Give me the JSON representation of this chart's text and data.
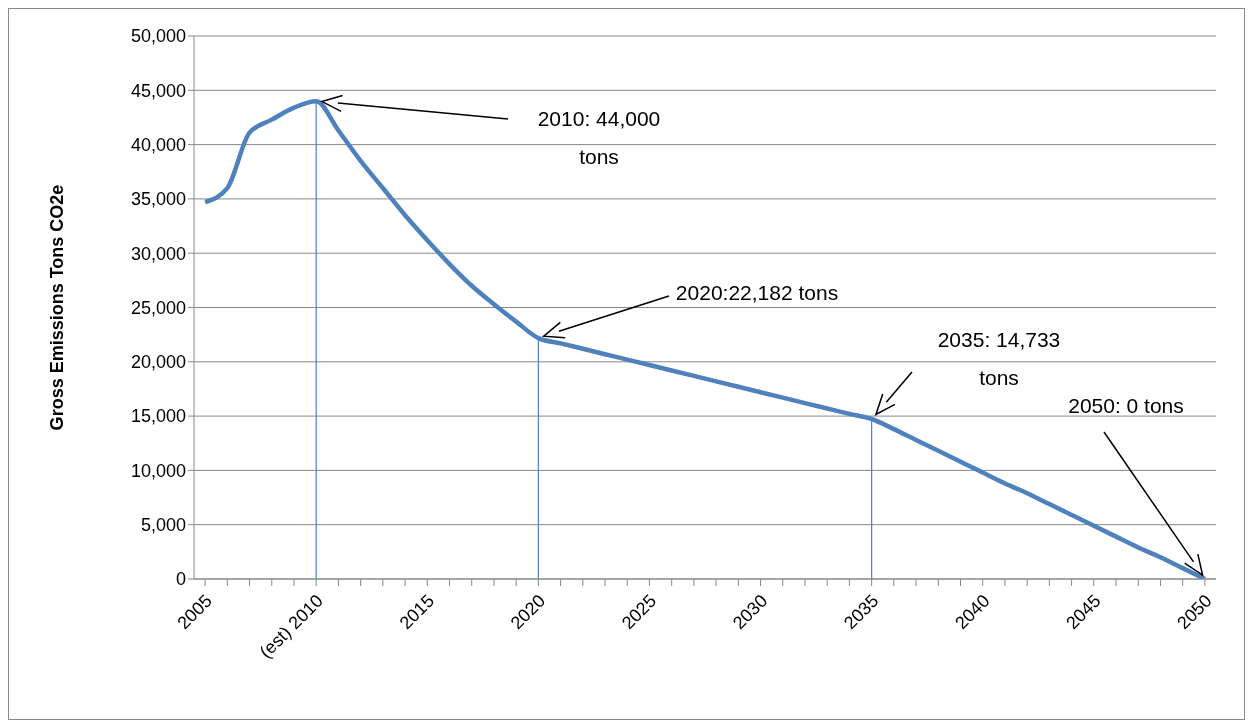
{
  "chart_data": {
    "type": "line",
    "ylabel": "Gross Emissions Tons CO2e",
    "x": [
      2005,
      2006,
      2007,
      2008,
      2009,
      2010,
      2011,
      2012,
      2013,
      2014,
      2015,
      2016,
      2017,
      2018,
      2019,
      2020,
      2021,
      2022,
      2023,
      2024,
      2025,
      2026,
      2027,
      2028,
      2029,
      2030,
      2031,
      2032,
      2033,
      2034,
      2035,
      2036,
      2037,
      2038,
      2039,
      2040,
      2041,
      2042,
      2043,
      2044,
      2045,
      2046,
      2047,
      2048,
      2049,
      2050
    ],
    "series": [
      {
        "color": "#4f81bd",
        "values": [
          34700,
          36000,
          41100,
          42300,
          43400,
          44000,
          41300,
          38500,
          36000,
          33500,
          31200,
          29000,
          27000,
          25300,
          23700,
          22182,
          21700,
          21200,
          20700,
          20200,
          19700,
          19200,
          18700,
          18200,
          17700,
          17200,
          16700,
          16200,
          15700,
          15200,
          14733,
          13800,
          12800,
          11800,
          10800,
          9800,
          8800,
          7900,
          6900,
          5900,
          4900,
          3900,
          2900,
          2000,
          1000,
          0
        ]
      }
    ],
    "xlim": [
      2004.5,
      2050.5
    ],
    "xticks": [
      2005,
      {
        "value": 2006,
        "label": null
      },
      {
        "value": 2007,
        "label": null
      },
      {
        "value": 2008,
        "label": null
      },
      {
        "value": 2009,
        "label": null
      },
      {
        "value": 2010,
        "label": "(est) 2010"
      },
      {
        "value": 2011,
        "label": null
      },
      {
        "value": 2012,
        "label": null
      },
      {
        "value": 2013,
        "label": null
      },
      {
        "value": 2014,
        "label": null
      },
      2015,
      {
        "value": 2016,
        "label": null
      },
      {
        "value": 2017,
        "label": null
      },
      {
        "value": 2018,
        "label": null
      },
      {
        "value": 2019,
        "label": null
      },
      2020,
      {
        "value": 2021,
        "label": null
      },
      {
        "value": 2022,
        "label": null
      },
      {
        "value": 2023,
        "label": null
      },
      {
        "value": 2024,
        "label": null
      },
      2025,
      {
        "value": 2026,
        "label": null
      },
      {
        "value": 2027,
        "label": null
      },
      {
        "value": 2028,
        "label": null
      },
      {
        "value": 2029,
        "label": null
      },
      2030,
      {
        "value": 2031,
        "label": null
      },
      {
        "value": 2032,
        "label": null
      },
      {
        "value": 2033,
        "label": null
      },
      {
        "value": 2034,
        "label": null
      },
      2035,
      {
        "value": 2036,
        "label": null
      },
      {
        "value": 2037,
        "label": null
      },
      {
        "value": 2038,
        "label": null
      },
      {
        "value": 2039,
        "label": null
      },
      2040,
      {
        "value": 2041,
        "label": null
      },
      {
        "value": 2042,
        "label": null
      },
      {
        "value": 2043,
        "label": null
      },
      {
        "value": 2044,
        "label": null
      },
      2045,
      {
        "value": 2046,
        "label": null
      },
      {
        "value": 2047,
        "label": null
      },
      {
        "value": 2048,
        "label": null
      },
      {
        "value": 2049,
        "label": null
      },
      2050
    ],
    "ylim": [
      0,
      50000
    ],
    "yticks": [
      0,
      {
        "value": 5000,
        "label": "5,000"
      },
      {
        "value": 10000,
        "label": "10,000"
      },
      {
        "value": 15000,
        "label": "15,000"
      },
      {
        "value": 20000,
        "label": "20,000"
      },
      {
        "value": 25000,
        "label": "25,000"
      },
      {
        "value": 30000,
        "label": "30,000"
      },
      {
        "value": 35000,
        "label": "35,000"
      },
      {
        "value": 40000,
        "label": "40,000"
      },
      {
        "value": 45000,
        "label": "45,000"
      },
      {
        "value": 50000,
        "label": "50,000"
      }
    ],
    "grid": "y",
    "marker": "none",
    "line_style": "solid",
    "ref_lines": [
      {
        "axis": "x",
        "value": 2010,
        "color": "#4f81bd"
      },
      {
        "axis": "x",
        "value": 2020,
        "color": "#4f81bd"
      },
      {
        "axis": "x",
        "value": 2035,
        "color": "#4f81bd"
      }
    ],
    "annotations": [
      "2010: 44,000 tons",
      "2020:22,182 tons",
      "2035: 14,733 tons",
      "2050: 0 tons"
    ]
  }
}
